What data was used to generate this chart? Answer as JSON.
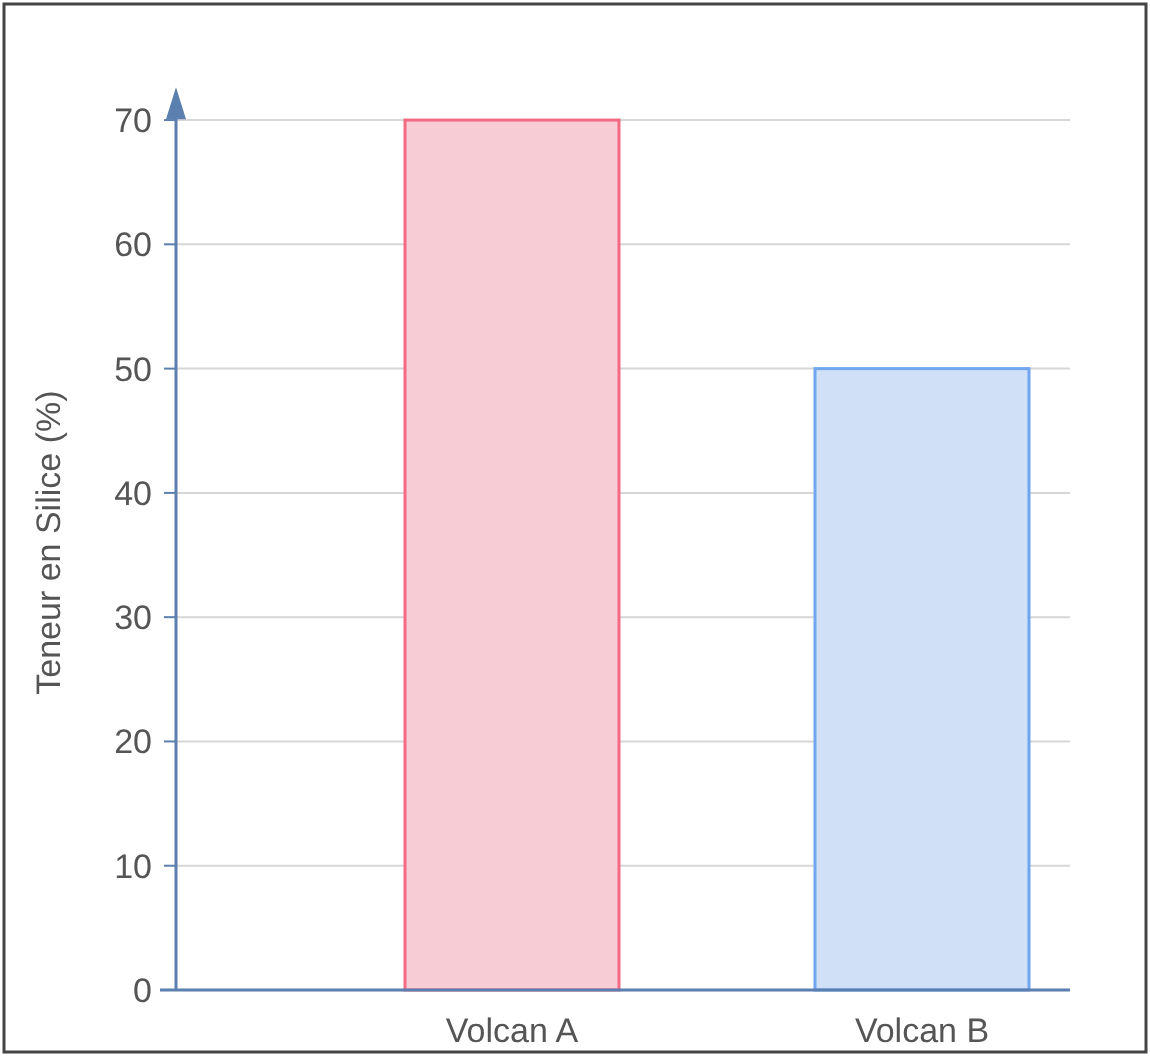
{
  "chart_data": {
    "type": "bar",
    "ylabel": "Teneur en Silice (%)",
    "categories": [
      "Volcan A",
      "Volcan B"
    ],
    "values": [
      70,
      50
    ],
    "colors": [
      "#f8ccd4",
      "#cfe0f7"
    ],
    "ylim": [
      0,
      72
    ],
    "yticks": [
      0,
      10,
      20,
      30,
      40,
      50,
      60,
      70
    ],
    "grid": "y"
  }
}
